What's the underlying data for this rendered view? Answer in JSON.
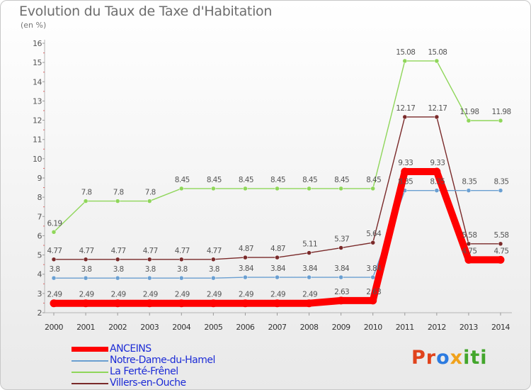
{
  "title": "Evolution du Taux de Taxe d'Habitation",
  "subtitle": "(en %)",
  "logo_text": "Proxiti",
  "chart_data": {
    "type": "line",
    "title": "Evolution du Taux de Taxe d'Habitation",
    "ylabel": "(en %)",
    "xlabel": "",
    "ylim": [
      2,
      16
    ],
    "yticks": [
      2,
      3,
      4,
      5,
      6,
      7,
      8,
      9,
      10,
      11,
      12,
      13,
      14,
      15,
      16
    ],
    "grid": false,
    "legend_position": "bottom-left",
    "x": [
      "2000",
      "2001",
      "2002",
      "2003",
      "2004",
      "2005",
      "2006",
      "2007",
      "2008",
      "2009",
      "2010",
      "2011",
      "2012",
      "2013",
      "2014"
    ],
    "series": [
      {
        "name": "ANCEINS",
        "color": "#ff0000",
        "values": [
          2.49,
          2.49,
          2.49,
          2.49,
          2.49,
          2.49,
          2.49,
          2.49,
          2.49,
          2.63,
          2.63,
          9.33,
          9.33,
          4.75,
          4.75
        ],
        "labels": [
          "2.49",
          "2.49",
          "2.49",
          "2.49",
          "2.49",
          "2.49",
          "2.49",
          "2.49",
          "2.49",
          "2.63",
          "2.63",
          "9.33",
          "9.33",
          "4.75",
          "4.75"
        ]
      },
      {
        "name": "Notre-Dame-du-Hamel",
        "color": "#6a9fd1",
        "values": [
          3.8,
          3.8,
          3.8,
          3.8,
          3.8,
          3.8,
          3.84,
          3.84,
          3.84,
          3.84,
          3.84,
          8.35,
          8.35,
          8.35,
          8.35
        ],
        "labels": [
          "3.8",
          "3.8",
          "3.8",
          "3.8",
          "3.8",
          "3.8",
          "3.84",
          "3.84",
          "3.84",
          "3.84",
          "3.84",
          "8.35",
          "8.35",
          "8.35",
          "8.35"
        ]
      },
      {
        "name": "La Ferté-Frênel",
        "color": "#8fd65a",
        "values": [
          6.19,
          7.8,
          7.8,
          7.8,
          8.45,
          8.45,
          8.45,
          8.45,
          8.45,
          8.45,
          8.45,
          15.08,
          15.08,
          11.98,
          11.98
        ],
        "labels": [
          "6.19",
          "7.8",
          "7.8",
          "7.8",
          "8.45",
          "8.45",
          "8.45",
          "8.45",
          "8.45",
          "8.45",
          "8.45",
          "15.08",
          "15.08",
          "11.98",
          "11.98"
        ]
      },
      {
        "name": "Villers-en-Ouche",
        "color": "#7a2a2a",
        "values": [
          4.77,
          4.77,
          4.77,
          4.77,
          4.77,
          4.77,
          4.87,
          4.87,
          5.11,
          5.37,
          5.64,
          12.17,
          12.17,
          5.58,
          5.58
        ],
        "labels": [
          "4.77",
          "4.77",
          "4.77",
          "4.77",
          "4.77",
          "4.77",
          "4.87",
          "4.87",
          "5.11",
          "5.37",
          "5.64",
          "12.17",
          "12.17",
          "5.58",
          "5.58"
        ]
      }
    ]
  }
}
